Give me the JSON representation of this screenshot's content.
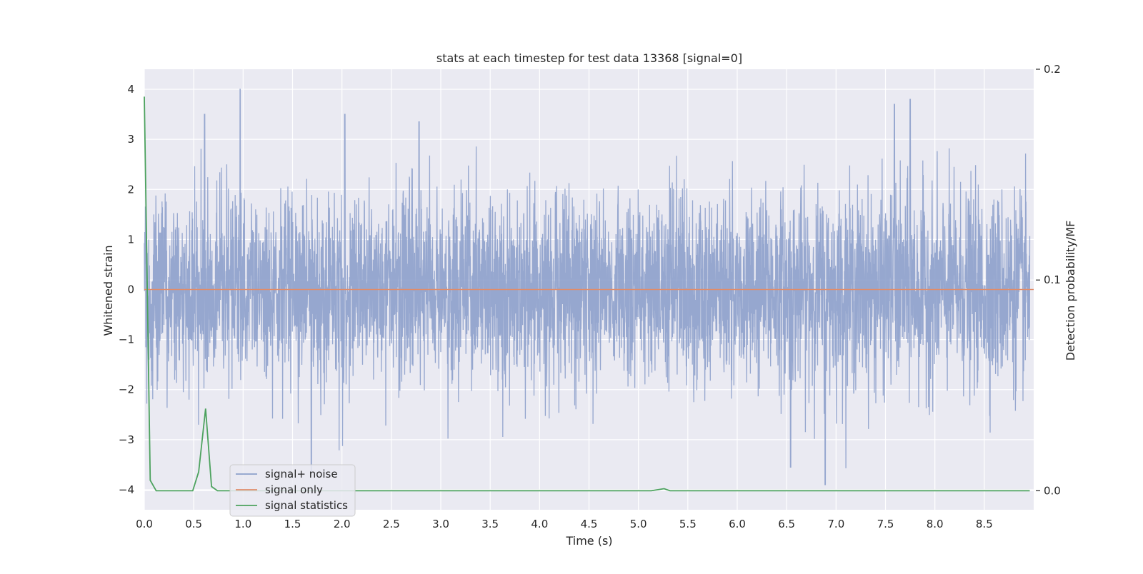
{
  "chart_data": {
    "type": "line",
    "title": "stats at each timestep for test data 13368 [signal=0]",
    "xlabel": "Time (s)",
    "ylabel": "Whitened strain",
    "y2label": "Detection probability/MF",
    "xlim": [
      0.0,
      9.0
    ],
    "ylim": [
      -4.4,
      4.4
    ],
    "y2lim": [
      -0.009,
      0.2
    ],
    "xticks": [
      "0.0",
      "0.5",
      "1.0",
      "1.5",
      "2.0",
      "2.5",
      "3.0",
      "3.5",
      "4.0",
      "4.5",
      "5.0",
      "5.5",
      "6.0",
      "6.5",
      "7.0",
      "7.5",
      "8.0",
      "8.5"
    ],
    "yticks": [
      "4",
      "3",
      "2",
      "1",
      "0",
      "−1",
      "−2",
      "−3",
      "−4"
    ],
    "y2ticks": [
      "0.2",
      "0.1",
      "0.0"
    ],
    "grid": true,
    "legend_position": "lower-left",
    "colors": {
      "background": "#EAEAF2",
      "grid": "#FFFFFF",
      "signal_noise": "#8DA0CB",
      "signal_only": "#E08C6A",
      "signal_statistics": "#4CA25E"
    },
    "series": [
      {
        "name": "signal+ noise",
        "axis": "left",
        "note": "dense whitened noise trace, roughly Gaussian, amplitude mostly within ±2.5 with spikes up to ±4",
        "sample_rate_hz": 2048,
        "x_range": [
          0.0,
          9.0
        ],
        "envelope_peaks": [
          {
            "x": 0.97,
            "y": 4.0
          },
          {
            "x": 0.61,
            "y": 3.5
          },
          {
            "x": 2.03,
            "y": 3.5
          },
          {
            "x": 2.78,
            "y": 3.35
          },
          {
            "x": 7.75,
            "y": 3.8
          },
          {
            "x": 7.59,
            "y": 3.7
          },
          {
            "x": 6.89,
            "y": -3.9
          },
          {
            "x": 6.54,
            "y": -3.55
          },
          {
            "x": 1.69,
            "y": -3.65
          }
        ]
      },
      {
        "name": "signal only",
        "axis": "left",
        "x": [
          0.0,
          9.0
        ],
        "y": [
          0.0,
          0.0
        ]
      },
      {
        "name": "signal statistics",
        "axis": "right",
        "x": [
          0.0,
          0.06,
          0.12,
          0.18,
          0.25,
          0.31,
          0.37,
          0.43,
          0.49,
          0.55,
          0.62,
          0.68,
          0.74,
          0.8,
          0.86,
          1.0,
          2.0,
          3.0,
          4.0,
          5.0,
          5.13,
          5.26,
          5.32,
          5.4,
          6.0,
          7.0,
          8.0,
          8.96
        ],
        "y": [
          0.187,
          0.005,
          0.0,
          0.0,
          0.0,
          0.0,
          0.0,
          0.0,
          0.0,
          0.009,
          0.039,
          0.002,
          0.0,
          0.0,
          0.0,
          0.0,
          0.0,
          0.0,
          0.0,
          0.0,
          0.0,
          0.001,
          0.0,
          0.0,
          0.0,
          0.0,
          0.0,
          0.0
        ]
      }
    ]
  }
}
